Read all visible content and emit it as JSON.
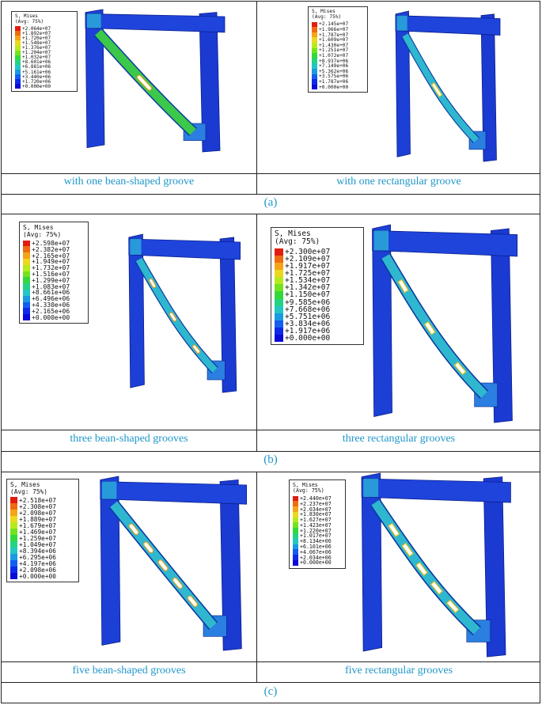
{
  "figure": {
    "groups": [
      {
        "label": "(a)",
        "panels": [
          {
            "caption": "with one bean-shaped groove",
            "legend": {
              "title1": "S, Mises",
              "title2": "(Avg: 75%)",
              "values": [
                "+2.064e+07",
                "+1.892e+07",
                "+1.720e+07",
                "+1.548e+07",
                "+1.376e+07",
                "+1.204e+07",
                "+1.032e+07",
                "+8.601e+06",
                "+6.881e+06",
                "+5.161e+06",
                "+3.440e+06",
                "+1.720e+06",
                "+0.000e+00"
              ]
            }
          },
          {
            "caption": "with one rectangular groove",
            "legend": {
              "title1": "S, Mises",
              "title2": "(Avg: 75%)",
              "values": [
                "+2.145e+07",
                "+1.966e+07",
                "+1.787e+07",
                "+1.609e+07",
                "+1.430e+07",
                "+1.251e+07",
                "+1.072e+07",
                "+8.937e+06",
                "+7.149e+06",
                "+5.362e+06",
                "+3.575e+06",
                "+1.787e+06",
                "+0.000e+00"
              ]
            }
          }
        ]
      },
      {
        "label": "(b)",
        "panels": [
          {
            "caption": "three bean-shaped grooves",
            "legend": {
              "title1": "S, Mises",
              "title2": "(Avg: 75%)",
              "values": [
                "+2.598e+07",
                "+2.382e+07",
                "+2.165e+07",
                "+1.949e+07",
                "+1.732e+07",
                "+1.516e+07",
                "+1.299e+07",
                "+1.083e+07",
                "+8.661e+06",
                "+6.496e+06",
                "+4.330e+06",
                "+2.165e+06",
                "+0.000e+00"
              ]
            }
          },
          {
            "caption": "three rectangular grooves",
            "legend": {
              "title1": "S, Mises",
              "title2": "(Avg: 75%)",
              "values": [
                "+2.300e+07",
                "+2.109e+07",
                "+1.917e+07",
                "+1.725e+07",
                "+1.534e+07",
                "+1.342e+07",
                "+1.150e+07",
                "+9.585e+06",
                "+7.668e+06",
                "+5.751e+06",
                "+3.834e+06",
                "+1.917e+06",
                "+0.000e+00"
              ]
            }
          }
        ]
      },
      {
        "label": "(c)",
        "panels": [
          {
            "caption": "five bean-shaped grooves",
            "legend": {
              "title1": "S, Mises",
              "title2": "(Avg: 75%)",
              "values": [
                "+2.518e+07",
                "+2.308e+07",
                "+2.098e+07",
                "+1.889e+07",
                "+1.679e+07",
                "+1.469e+07",
                "+1.259e+07",
                "+1.049e+07",
                "+8.394e+06",
                "+6.295e+06",
                "+4.197e+06",
                "+2.098e+06",
                "+0.000e+00"
              ]
            }
          },
          {
            "caption": "five rectangular grooves",
            "legend": {
              "title1": "S, Mises",
              "title2": "(Avg: 75%)",
              "values": [
                "+2.440e+07",
                "+2.237e+07",
                "+2.034e+07",
                "+1.830e+07",
                "+1.627e+07",
                "+1.423e+07",
                "+1.220e+07",
                "+1.017e+07",
                "+8.134e+06",
                "+6.101e+06",
                "+4.067e+06",
                "+2.034e+06",
                "+0.000e+00"
              ]
            }
          }
        ]
      }
    ],
    "legend_colors": [
      "#e01d10",
      "#f06a12",
      "#f5a418",
      "#ecd81e",
      "#b7ea1e",
      "#72e31e",
      "#33d93a",
      "#22d384",
      "#22c6c4",
      "#1a9ae0",
      "#145ef0",
      "#0d2ae8",
      "#0a0ad8"
    ]
  }
}
